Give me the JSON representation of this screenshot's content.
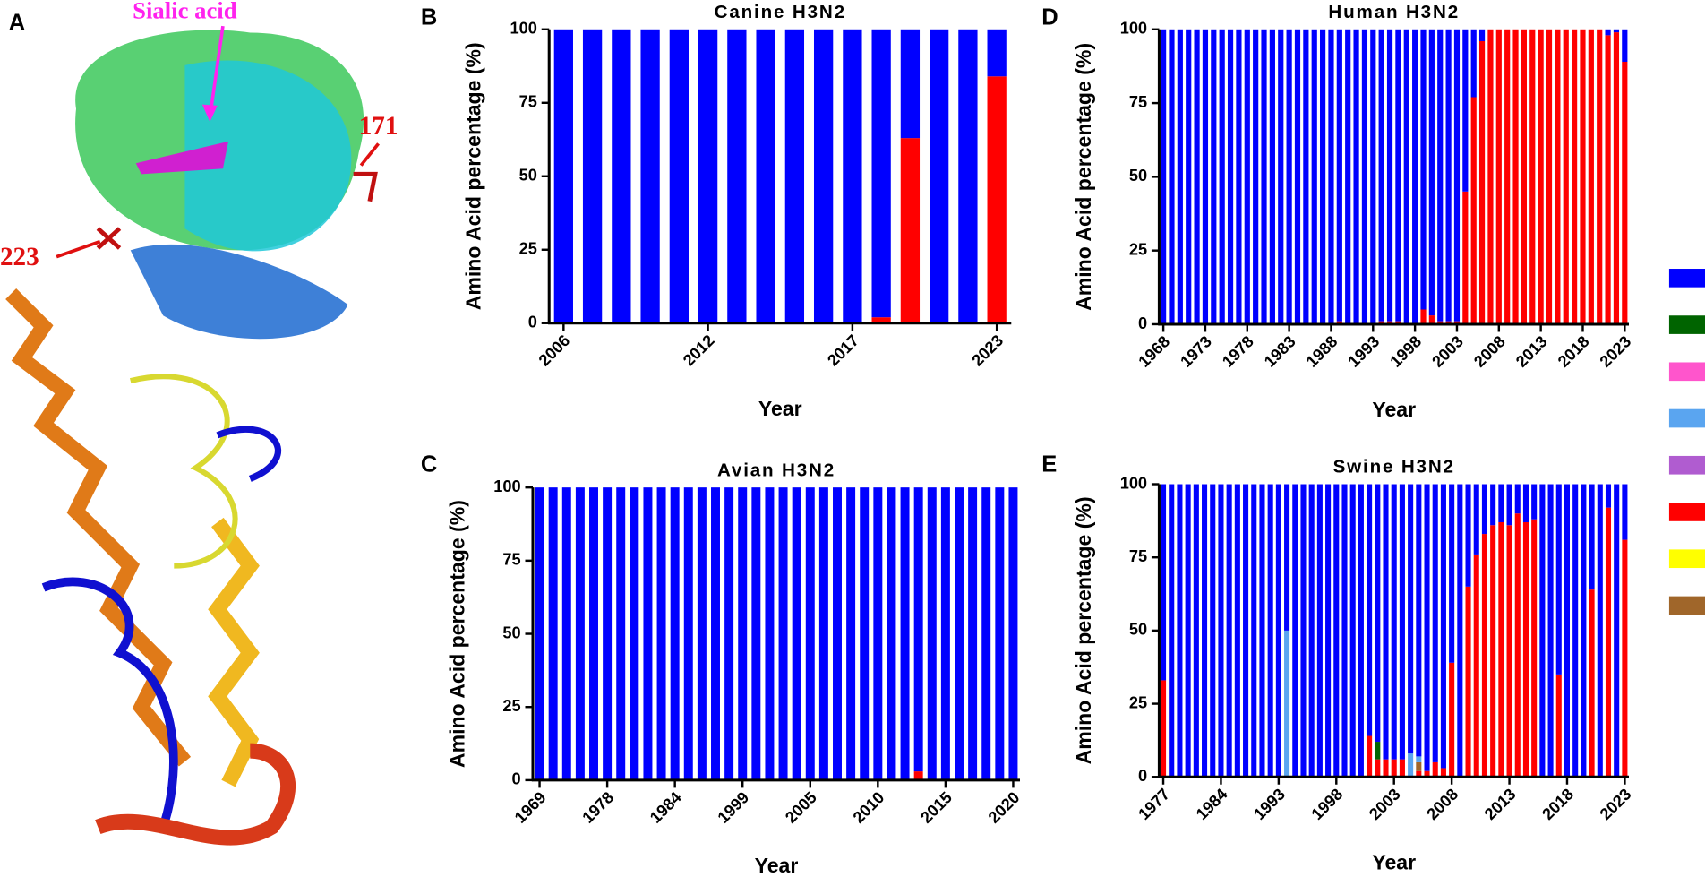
{
  "structure_panel": {
    "panel": "A",
    "annotations": [
      "Sialic acid",
      "171",
      "223"
    ]
  },
  "legend": {
    "colors": [
      "#0000ff",
      "#006400",
      "#ff55cc",
      "#5aa5f0",
      "#b05cd0",
      "#ff0000",
      "#ffff00",
      "#a0662a"
    ]
  },
  "chart_data": [
    {
      "type": "bar",
      "stacked": true,
      "panel": "B",
      "title": "Canine H3N2",
      "x_label": "Year",
      "y_label": "Amino Acid percentage (%)",
      "categories": [
        "2006",
        null,
        null,
        null,
        null,
        "2012",
        null,
        null,
        null,
        null,
        "2017",
        null,
        null,
        null,
        null,
        "2023"
      ],
      "ylim": [
        0,
        100
      ],
      "yticks": [
        0,
        25,
        50,
        75,
        100
      ],
      "series": [
        {
          "color": "#ff0000",
          "values": [
            0,
            0,
            0,
            0,
            0,
            0,
            0,
            0,
            0,
            0,
            0,
            2,
            63,
            0,
            0,
            84
          ]
        },
        {
          "color": "#0000ff",
          "values": [
            100,
            100,
            100,
            100,
            100,
            100,
            100,
            100,
            100,
            100,
            100,
            98,
            37,
            100,
            100,
            16
          ]
        }
      ]
    },
    {
      "type": "bar",
      "stacked": true,
      "panel": "C",
      "title": "Avian H3N2",
      "x_label": "Year",
      "y_label": "Amino Acid percentage (%)",
      "categories": [
        "1969",
        null,
        null,
        null,
        null,
        "1978",
        null,
        null,
        null,
        null,
        "1984",
        null,
        null,
        null,
        null,
        "1999",
        null,
        null,
        null,
        null,
        "2005",
        null,
        null,
        null,
        null,
        "2010",
        null,
        null,
        null,
        null,
        "2015",
        null,
        null,
        null,
        null,
        "2020"
      ],
      "ylim": [
        0,
        100
      ],
      "yticks": [
        0,
        25,
        50,
        75,
        100
      ],
      "series": [
        {
          "color": "#ff0000",
          "values": [
            0,
            0,
            0,
            0,
            0,
            0,
            0,
            0,
            0,
            0,
            0,
            0,
            0,
            0,
            0,
            0,
            0,
            0,
            0,
            0,
            0,
            0,
            0,
            0,
            0,
            0,
            0,
            0,
            3,
            0,
            0,
            0,
            0,
            0,
            0,
            0
          ]
        },
        {
          "color": "#0000ff",
          "values": [
            100,
            100,
            100,
            100,
            100,
            100,
            100,
            100,
            100,
            100,
            100,
            100,
            100,
            100,
            100,
            100,
            100,
            100,
            100,
            100,
            100,
            100,
            100,
            100,
            100,
            100,
            100,
            100,
            97,
            100,
            100,
            100,
            100,
            100,
            100,
            100
          ]
        }
      ]
    },
    {
      "type": "bar",
      "stacked": true,
      "panel": "D",
      "title": "Human H3N2",
      "x_label": "Year",
      "y_label": "Amino Acid percentage (%)",
      "categories": [
        "1968",
        null,
        null,
        null,
        null,
        "1973",
        null,
        null,
        null,
        null,
        "1978",
        null,
        null,
        null,
        null,
        "1983",
        null,
        null,
        null,
        null,
        "1988",
        null,
        null,
        null,
        null,
        "1993",
        null,
        null,
        null,
        null,
        "1998",
        null,
        null,
        null,
        null,
        "2003",
        null,
        null,
        null,
        null,
        "2008",
        null,
        null,
        null,
        null,
        "2013",
        null,
        null,
        null,
        null,
        "2018",
        null,
        null,
        null,
        null,
        "2023"
      ],
      "ylim": [
        0,
        100
      ],
      "yticks": [
        0,
        25,
        50,
        75,
        100
      ],
      "series": [
        {
          "color": "#ff0000",
          "values": [
            0,
            0,
            0,
            0,
            0,
            0,
            0,
            0,
            0,
            0,
            0,
            0,
            0,
            0,
            0,
            0,
            0,
            0,
            0,
            0,
            0,
            1,
            0,
            0,
            0,
            0,
            1,
            1,
            1,
            0,
            0,
            5,
            3,
            1,
            1,
            1,
            45,
            77,
            96,
            100,
            100,
            100,
            100,
            100,
            100,
            100,
            100,
            100,
            100,
            100,
            100,
            100,
            100,
            98,
            99,
            89
          ]
        },
        {
          "color": "#0000ff",
          "values": [
            100,
            100,
            100,
            100,
            100,
            100,
            100,
            100,
            100,
            100,
            100,
            100,
            100,
            100,
            100,
            100,
            100,
            100,
            100,
            100,
            100,
            99,
            100,
            100,
            100,
            100,
            99,
            99,
            99,
            100,
            100,
            95,
            97,
            99,
            99,
            99,
            55,
            23,
            4,
            0,
            0,
            0,
            0,
            0,
            0,
            0,
            0,
            0,
            0,
            0,
            0,
            0,
            0,
            2,
            1,
            11
          ]
        }
      ]
    },
    {
      "type": "bar",
      "stacked": true,
      "panel": "E",
      "title": "Swine H3N2",
      "x_label": "Year",
      "y_label": "Amino Acid percentage (%)",
      "categories": [
        "1977",
        null,
        null,
        null,
        null,
        null,
        null,
        "1984",
        null,
        null,
        null,
        null,
        null,
        null,
        "1993",
        null,
        null,
        null,
        null,
        null,
        null,
        "1998",
        null,
        null,
        null,
        null,
        null,
        null,
        "2003",
        null,
        null,
        null,
        null,
        null,
        null,
        "2008",
        null,
        null,
        null,
        null,
        null,
        null,
        "2013",
        null,
        null,
        null,
        null,
        null,
        null,
        "2018",
        null,
        null,
        null,
        null,
        null,
        null,
        "2023"
      ],
      "ylim": [
        0,
        100
      ],
      "yticks": [
        0,
        25,
        50,
        75,
        100
      ],
      "series": [
        {
          "color": "#ff0000",
          "values": [
            33,
            0,
            0,
            0,
            0,
            0,
            0,
            0,
            0,
            0,
            0,
            0,
            0,
            0,
            0,
            0,
            0,
            0,
            0,
            0,
            0,
            0,
            0,
            0,
            0,
            14,
            6,
            6,
            6,
            6,
            0,
            2,
            2,
            5,
            3,
            39,
            0,
            65,
            76,
            83,
            86,
            87,
            86,
            90,
            87,
            88,
            0,
            0,
            35,
            0,
            0,
            0,
            64,
            0,
            92,
            0,
            81
          ]
        },
        {
          "color": "#006400",
          "values": [
            0,
            0,
            0,
            0,
            0,
            0,
            0,
            0,
            0,
            0,
            0,
            0,
            0,
            0,
            0,
            0,
            0,
            0,
            0,
            0,
            0,
            0,
            0,
            0,
            0,
            0,
            6,
            0,
            0,
            0,
            0,
            0,
            0,
            0,
            0,
            0,
            0,
            0,
            0,
            0,
            0,
            0,
            0,
            0,
            0,
            0,
            0,
            0,
            0,
            0,
            0,
            0,
            0,
            0,
            0,
            0,
            0
          ]
        },
        {
          "color": "#a0662a",
          "values": [
            0,
            0,
            0,
            0,
            0,
            0,
            0,
            0,
            0,
            0,
            0,
            0,
            0,
            0,
            0,
            0,
            0,
            0,
            0,
            0,
            0,
            0,
            0,
            0,
            0,
            0,
            0,
            0,
            0,
            0,
            0,
            3,
            0,
            0,
            0,
            0,
            0,
            0,
            0,
            0,
            0,
            0,
            0,
            0,
            0,
            0,
            0,
            0,
            0,
            0,
            0,
            0,
            0,
            0,
            0,
            0,
            0
          ]
        },
        {
          "color": "#5aa5f0",
          "values": [
            0,
            0,
            0,
            0,
            0,
            0,
            0,
            0,
            0,
            0,
            0,
            0,
            0,
            0,
            0,
            50,
            0,
            0,
            0,
            0,
            0,
            0,
            0,
            0,
            0,
            0,
            0,
            0,
            0,
            0,
            8,
            2,
            0,
            0,
            0,
            0,
            0,
            0,
            0,
            0,
            0,
            0,
            0,
            0,
            0,
            0,
            0,
            0,
            0,
            0,
            0,
            0,
            0,
            0,
            0,
            0,
            0
          ]
        },
        {
          "color": "#0000ff",
          "values": [
            67,
            100,
            100,
            100,
            100,
            100,
            100,
            100,
            100,
            100,
            100,
            100,
            100,
            100,
            100,
            50,
            100,
            100,
            100,
            100,
            100,
            100,
            100,
            100,
            100,
            86,
            88,
            94,
            94,
            94,
            92,
            93,
            98,
            95,
            97,
            61,
            100,
            35,
            24,
            17,
            14,
            13,
            14,
            10,
            13,
            12,
            100,
            100,
            65,
            100,
            100,
            100,
            36,
            100,
            8,
            100,
            19
          ]
        }
      ]
    }
  ]
}
